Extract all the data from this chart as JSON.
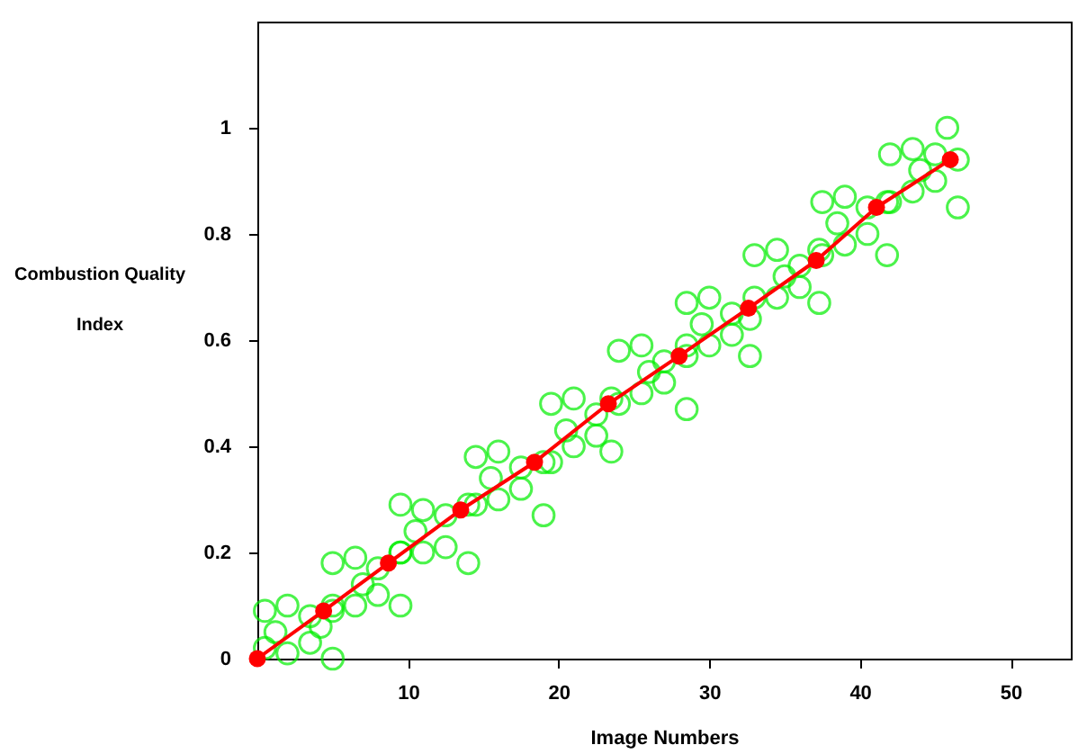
{
  "chart_data": {
    "type": "scatter",
    "xlabel": "Image Numbers",
    "ylabel": "Combustion Quality Index",
    "xlim": [
      0,
      54
    ],
    "ylim": [
      0,
      1.2
    ],
    "xticks": [
      10,
      20,
      30,
      40,
      50
    ],
    "yticks": [
      0,
      0.2,
      0.4,
      0.6,
      0.8,
      1
    ],
    "series": [
      {
        "marker": "circle",
        "color": "#00ee00",
        "x": [
          0.5,
          0.5,
          2,
          2,
          3.5,
          3.5,
          5,
          5,
          1.2,
          4.2,
          5,
          5,
          6.5,
          6.5,
          8,
          8,
          9.5,
          9.5,
          7,
          9.5,
          9.5,
          11,
          11,
          12.5,
          12.5,
          14,
          14,
          10.5,
          14.5,
          14.5,
          16,
          16,
          17.5,
          17.5,
          19,
          19,
          15.5,
          19.5,
          19.5,
          21,
          21,
          22.5,
          22.5,
          23.5,
          23.5,
          20.5,
          24,
          24,
          25.5,
          25.5,
          27,
          27,
          28.5,
          28.5,
          26,
          28.5,
          28.5,
          30,
          30,
          31.5,
          31.5,
          32.7,
          32.7,
          29.5,
          33,
          33,
          34.5,
          34.5,
          36,
          36,
          37.3,
          37.3,
          35,
          37.5,
          37.5,
          39,
          39,
          40.5,
          40.5,
          41.8,
          41.8,
          38.5,
          42,
          42,
          43.5,
          43.5,
          45,
          45,
          46.5,
          46.5,
          44,
          45.8
        ],
        "values": [
          0.09,
          0.02,
          0.1,
          0.01,
          0.08,
          0.03,
          0.1,
          0.0,
          0.05,
          0.06,
          0.18,
          0.09,
          0.19,
          0.1,
          0.17,
          0.12,
          0.2,
          0.1,
          0.14,
          0.29,
          0.2,
          0.28,
          0.2,
          0.27,
          0.21,
          0.29,
          0.18,
          0.24,
          0.38,
          0.29,
          0.39,
          0.3,
          0.36,
          0.32,
          0.37,
          0.27,
          0.34,
          0.48,
          0.37,
          0.49,
          0.4,
          0.46,
          0.42,
          0.49,
          0.39,
          0.43,
          0.58,
          0.48,
          0.59,
          0.5,
          0.56,
          0.52,
          0.57,
          0.47,
          0.54,
          0.67,
          0.59,
          0.68,
          0.59,
          0.65,
          0.61,
          0.64,
          0.57,
          0.63,
          0.76,
          0.68,
          0.77,
          0.68,
          0.74,
          0.7,
          0.77,
          0.67,
          0.72,
          0.86,
          0.76,
          0.87,
          0.78,
          0.85,
          0.8,
          0.86,
          0.76,
          0.82,
          0.95,
          0.86,
          0.96,
          0.88,
          0.95,
          0.9,
          0.94,
          0.85,
          0.92,
          1.0
        ]
      },
      {
        "type": "line",
        "marker": "circle",
        "line_style": "solid",
        "color": "#ff0000",
        "x": [
          0,
          4.4,
          8.7,
          13.5,
          18.4,
          23.3,
          28.0,
          32.6,
          37.1,
          41.1,
          46.0
        ],
        "values": [
          0,
          0.09,
          0.18,
          0.28,
          0.37,
          0.48,
          0.57,
          0.66,
          0.75,
          0.85,
          0.94
        ]
      }
    ]
  }
}
